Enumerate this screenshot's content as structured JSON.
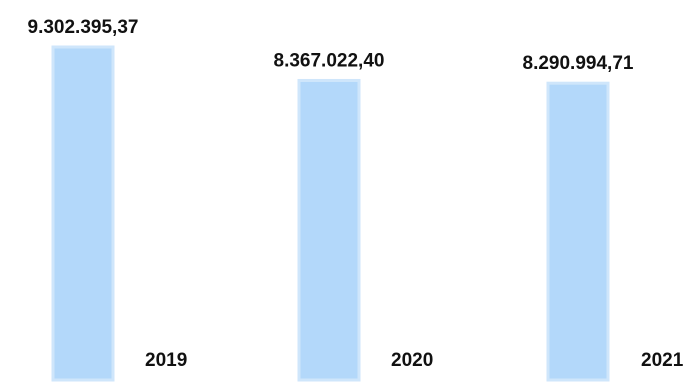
{
  "chart_data": {
    "type": "bar",
    "categories": [
      "2019",
      "2020",
      "2021"
    ],
    "values": [
      9302395.37,
      8367022.4,
      8290994.71
    ],
    "value_labels": [
      "9.302.395,37",
      "8.367.022,40",
      "8.290.994,71"
    ],
    "title": "",
    "xlabel": "",
    "ylabel": "",
    "grid": false,
    "legend": "none",
    "bar_color": "#b3d8fa",
    "bar_edge_color": "#cfe6fb"
  }
}
